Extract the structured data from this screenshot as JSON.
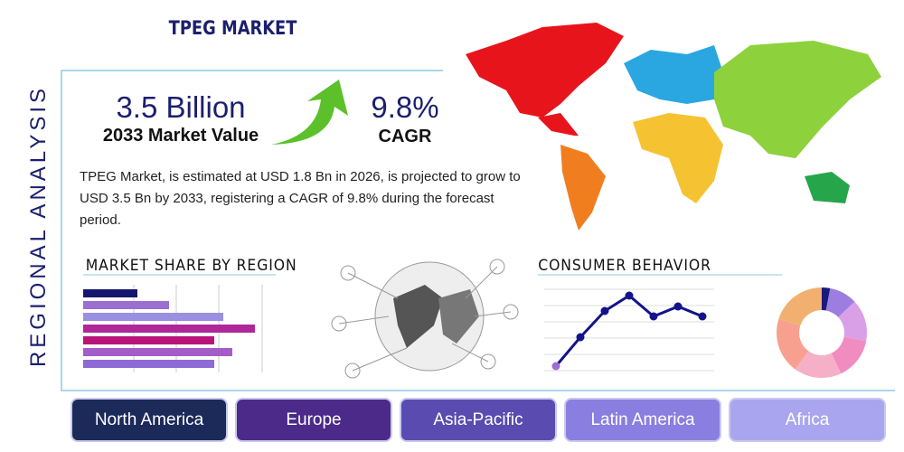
{
  "header": {
    "title": "TPEG MARKET",
    "side_title": "REGIONAL ANALYSIS"
  },
  "stats": {
    "market_value": "3.5 Billion",
    "market_value_label": "2033 Market Value",
    "cagr": "9.8%",
    "cagr_label": "CAGR"
  },
  "description": "TPEG Market, is estimated at USD 1.8 Bn in 2026, is projected to grow to USD 3.5 Bn by 2033, registering a CAGR of 9.8% during the forecast period.",
  "market_share": {
    "type": "bar",
    "title": "MARKET SHARE BY REGION",
    "values": [
      12,
      19,
      31,
      38,
      29,
      33,
      29
    ],
    "colors": [
      "#16156e",
      "#9b6fd0",
      "#9a8fe0",
      "#b0279a",
      "#b8157a",
      "#a45dc8",
      "#8e6ad6"
    ],
    "xlim": [
      0,
      40
    ]
  },
  "consumer_behavior": {
    "type": "line",
    "title": "CONSUMER BEHAVIOR",
    "values": [
      10,
      42,
      71,
      88,
      65,
      76,
      65
    ],
    "ylim": [
      0,
      100
    ],
    "color": "#13138a"
  },
  "donut": {
    "type": "pie",
    "values": [
      3,
      10,
      15,
      15,
      17,
      20,
      20
    ],
    "colors": [
      "#1a1a7a",
      "#9c7ee0",
      "#d9a0e8",
      "#f08cc0",
      "#f5b0c8",
      "#f7a090",
      "#f2b070"
    ]
  },
  "regions": [
    "North America",
    "Europe",
    "Asia-Pacific",
    "Latin America",
    "Africa"
  ]
}
